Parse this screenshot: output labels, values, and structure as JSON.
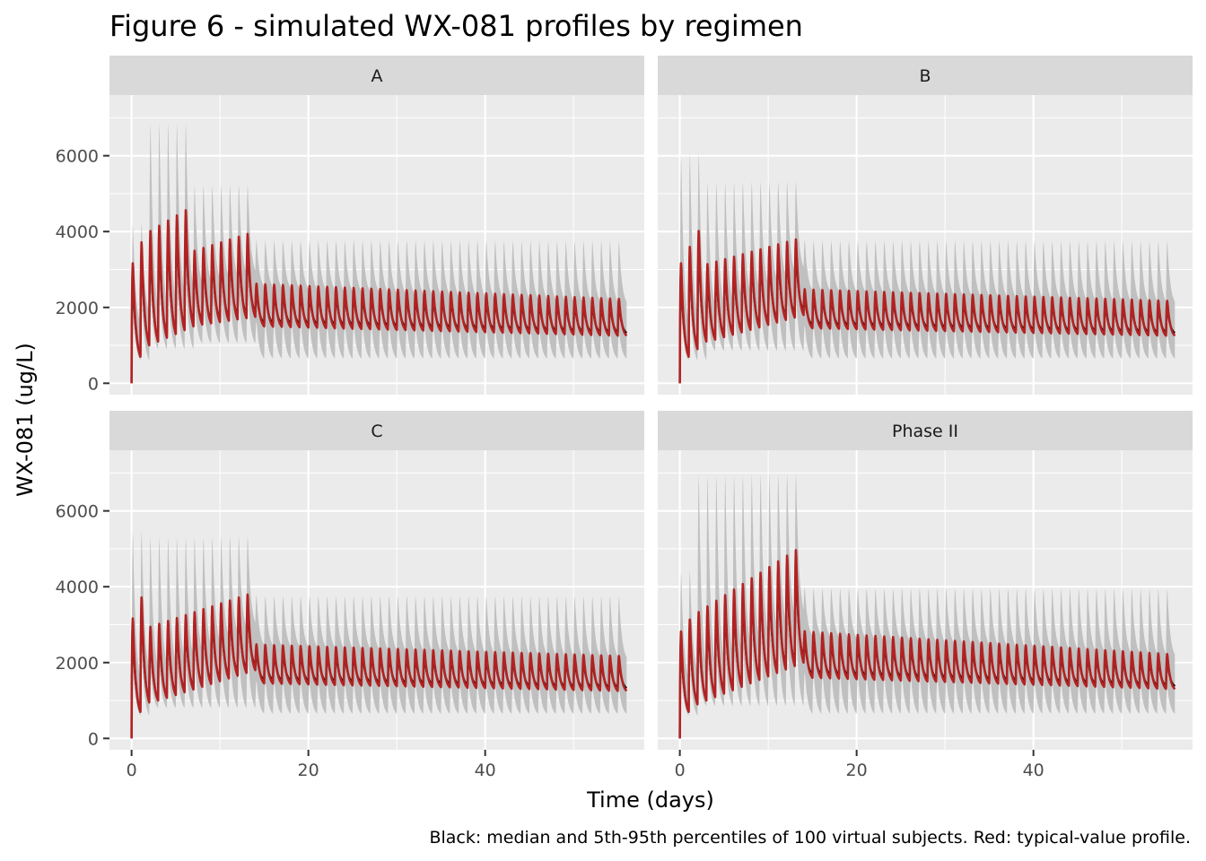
{
  "chart_data": {
    "type": "line",
    "title": "Figure 6 - simulated WX-081 profiles by regimen",
    "xlabel": "Time (days)",
    "ylabel": "WX-081 (ug/L)",
    "caption": "Black: median and 5th-95th percentiles of 100 virtual subjects. Red: typical-value profile.",
    "xlim": [
      -2.5,
      58
    ],
    "ylim": [
      -300,
      7600
    ],
    "x_ticks": [
      0,
      20,
      40
    ],
    "y_ticks": [
      0,
      2000,
      4000,
      6000
    ],
    "grid": true,
    "colors": {
      "band": "#bebebe",
      "median": "#000000",
      "typical": "#b22222"
    },
    "dose_interval_days": 1,
    "end_day": 56,
    "panels": [
      {
        "label": "A",
        "phases": [
          {
            "start": 0,
            "end": 2,
            "peak_start": 3250,
            "peak_end": 3800,
            "trough_start": 700,
            "trough_end": 1000,
            "band_upper_peak": 4300,
            "band_lower_trough": 600
          },
          {
            "start": 2,
            "end": 7,
            "peak_start": 4100,
            "peak_end": 4650,
            "trough_start": 1100,
            "trough_end": 1500,
            "band_upper_peak": 7000,
            "band_lower_trough": 900
          },
          {
            "start": 7,
            "end": 14,
            "peak_start": 3550,
            "peak_end": 4000,
            "trough_start": 1550,
            "trough_end": 1750,
            "band_upper_peak": 5300,
            "band_lower_trough": 1050
          },
          {
            "start": 14,
            "end": 56,
            "peak_start": 2650,
            "peak_end": 2250,
            "trough_start": 1500,
            "trough_end": 1250,
            "band_upper_peak": 3800,
            "band_lower_trough": 650
          }
        ]
      },
      {
        "label": "B",
        "phases": [
          {
            "start": 0,
            "end": 3,
            "peak_start": 3250,
            "peak_end": 4100,
            "trough_start": 700,
            "trough_end": 1100,
            "band_upper_peak": 6200,
            "band_lower_trough": 600
          },
          {
            "start": 3,
            "end": 14,
            "peak_start": 3200,
            "peak_end": 3850,
            "trough_start": 1150,
            "trough_end": 1800,
            "band_upper_peak": 5400,
            "band_lower_trough": 850
          },
          {
            "start": 14,
            "end": 56,
            "peak_start": 2500,
            "peak_end": 2200,
            "trough_start": 1450,
            "trough_end": 1250,
            "band_upper_peak": 3800,
            "band_lower_trough": 650
          }
        ]
      },
      {
        "label": "C",
        "phases": [
          {
            "start": 0,
            "end": 2,
            "peak_start": 3250,
            "peak_end": 3800,
            "trough_start": 700,
            "trough_end": 950,
            "band_upper_peak": 5600,
            "band_lower_trough": 600
          },
          {
            "start": 2,
            "end": 14,
            "peak_start": 3000,
            "peak_end": 3850,
            "trough_start": 1000,
            "trough_end": 1800,
            "band_upper_peak": 5400,
            "band_lower_trough": 800
          },
          {
            "start": 14,
            "end": 56,
            "peak_start": 2500,
            "peak_end": 2200,
            "trough_start": 1450,
            "trough_end": 1250,
            "band_upper_peak": 3800,
            "band_lower_trough": 650
          }
        ]
      },
      {
        "label": "Phase II",
        "phases": [
          {
            "start": 0,
            "end": 2,
            "peak_start": 2900,
            "peak_end": 3200,
            "trough_start": 700,
            "trough_end": 900,
            "band_upper_peak": 4500,
            "band_lower_trough": 600
          },
          {
            "start": 2,
            "end": 14,
            "peak_start": 3400,
            "peak_end": 5050,
            "trough_start": 1000,
            "trough_end": 2000,
            "band_upper_peak": 7100,
            "band_lower_trough": 850
          },
          {
            "start": 14,
            "end": 56,
            "peak_start": 2850,
            "peak_end": 2250,
            "trough_start": 1600,
            "trough_end": 1300,
            "band_upper_peak": 4000,
            "band_lower_trough": 650
          }
        ]
      }
    ]
  }
}
